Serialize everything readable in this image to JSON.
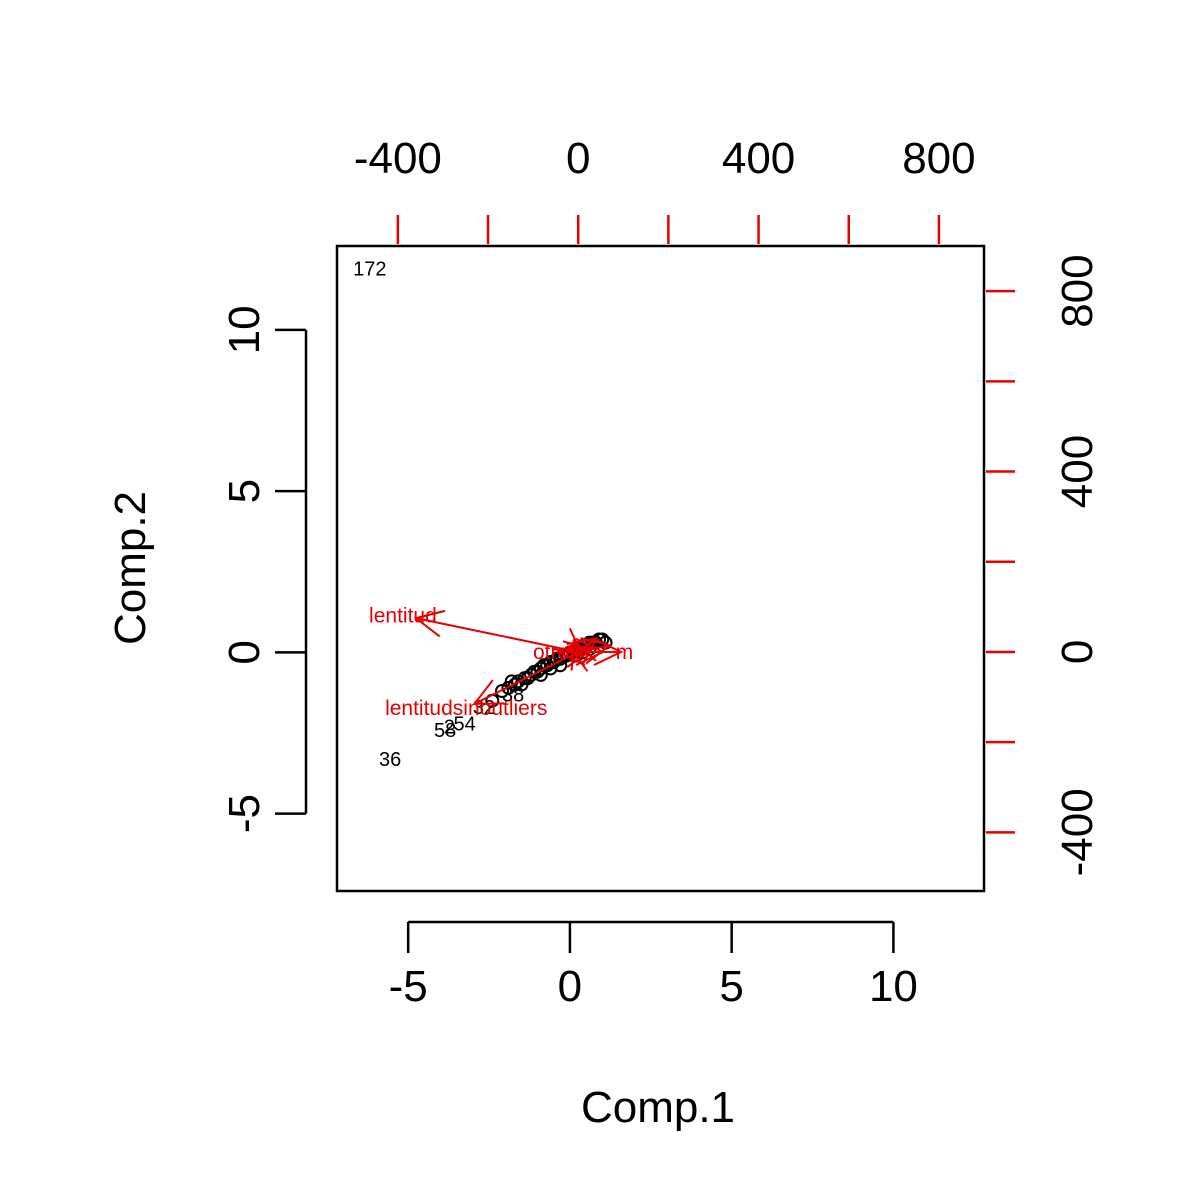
{
  "chart_data": {
    "type": "scatter",
    "subtype": "biplot",
    "xlabel": "Comp.1",
    "ylabel": "Comp.2",
    "xlim": [
      -7.2,
      12.8
    ],
    "ylim": [
      -7.4,
      12.6
    ],
    "x_ticks": [
      -5,
      0,
      5,
      10
    ],
    "y_ticks": [
      -5,
      0,
      5,
      10
    ],
    "loading_xlim": [
      -535,
      900
    ],
    "loading_ylim": [
      -530,
      900
    ],
    "loading_x_ticks": [
      -400,
      -200,
      0,
      200,
      400,
      600,
      800
    ],
    "loading_x_tick_labels": [
      -400,
      0,
      400,
      800
    ],
    "loading_y_ticks": [
      -400,
      -200,
      0,
      200,
      400,
      600,
      800
    ],
    "loading_y_tick_labels": [
      -400,
      0,
      400,
      800
    ],
    "point_color": "#000000",
    "loading_color": "#e60000",
    "labeled_points": [
      {
        "label": "172",
        "x": -6.7,
        "y": 11.9
      },
      {
        "label": "36",
        "x": -5.9,
        "y": -3.3
      },
      {
        "label": "58",
        "x": -4.2,
        "y": -2.4
      },
      {
        "label": "2",
        "x": -3.9,
        "y": -2.3
      },
      {
        "label": "54",
        "x": -3.6,
        "y": -2.2
      },
      {
        "label": "32",
        "x": -3.0,
        "y": -1.7
      },
      {
        "label": "38",
        "x": -2.1,
        "y": -1.3
      }
    ],
    "points": [
      {
        "x": -2.4,
        "y": -1.5
      },
      {
        "x": -2.1,
        "y": -1.2
      },
      {
        "x": -1.9,
        "y": -1.1
      },
      {
        "x": -1.7,
        "y": -1.0
      },
      {
        "x": -1.6,
        "y": -0.9
      },
      {
        "x": -1.4,
        "y": -0.8
      },
      {
        "x": -1.3,
        "y": -0.8
      },
      {
        "x": -1.2,
        "y": -0.7
      },
      {
        "x": -1.1,
        "y": -0.6
      },
      {
        "x": -1.0,
        "y": -0.6
      },
      {
        "x": -0.9,
        "y": -0.5
      },
      {
        "x": -0.8,
        "y": -0.4
      },
      {
        "x": -0.7,
        "y": -0.4
      },
      {
        "x": -0.6,
        "y": -0.3
      },
      {
        "x": -0.5,
        "y": -0.3
      },
      {
        "x": -0.4,
        "y": -0.2
      },
      {
        "x": -0.3,
        "y": -0.2
      },
      {
        "x": -0.2,
        "y": -0.1
      },
      {
        "x": -0.1,
        "y": -0.1
      },
      {
        "x": 0.0,
        "y": 0.0
      },
      {
        "x": 0.1,
        "y": 0.0
      },
      {
        "x": 0.2,
        "y": 0.1
      },
      {
        "x": 0.3,
        "y": 0.1
      },
      {
        "x": 0.4,
        "y": 0.2
      },
      {
        "x": 0.5,
        "y": 0.2
      },
      {
        "x": 0.6,
        "y": 0.3
      },
      {
        "x": 0.7,
        "y": 0.3
      },
      {
        "x": 0.8,
        "y": 0.3
      },
      {
        "x": 0.9,
        "y": 0.4
      },
      {
        "x": 1.0,
        "y": 0.4
      },
      {
        "x": 1.1,
        "y": 0.3
      },
      {
        "x": -1.5,
        "y": -1.0
      },
      {
        "x": -0.9,
        "y": -0.7
      },
      {
        "x": -0.3,
        "y": -0.4
      },
      {
        "x": 0.2,
        "y": -0.1
      },
      {
        "x": 0.6,
        "y": 0.1
      },
      {
        "x": -1.8,
        "y": -0.9
      },
      {
        "x": -0.6,
        "y": -0.5
      },
      {
        "x": 0.4,
        "y": 0.0
      }
    ],
    "loadings": [
      {
        "name": "lentitud",
        "x": -360,
        "y": 75
      },
      {
        "name": "lentitudsinoutliers",
        "x": -230,
        "y": -115
      },
      {
        "name": "otros",
        "x": -45,
        "y": 0
      },
      {
        "name": "",
        "x": -20,
        "y": 10
      },
      {
        "name": "",
        "x": 10,
        "y": -8
      },
      {
        "name": "",
        "x": 30,
        "y": 5
      },
      {
        "name": "",
        "x": 55,
        "y": 0
      },
      {
        "name": "",
        "x": 70,
        "y": 15
      },
      {
        "name": "",
        "x": 40,
        "y": 30
      },
      {
        "name": "",
        "x": -10,
        "y": 25
      },
      {
        "name": "m",
        "x": 95,
        "y": 0
      }
    ]
  }
}
